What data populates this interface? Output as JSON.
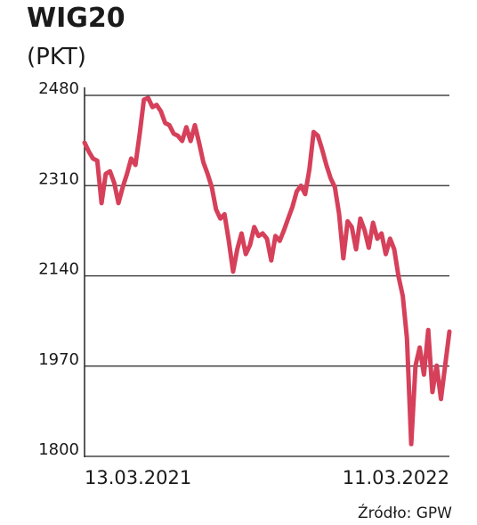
{
  "chart_data": {
    "type": "line",
    "title": "WIG20",
    "subtitle": "(PKT)",
    "source": "Źródło: GPW",
    "categories": [
      "13.03.2021",
      null,
      null,
      null,
      null,
      null,
      null,
      null,
      null,
      null,
      null,
      null,
      null,
      null,
      null,
      null,
      null,
      null,
      null,
      null,
      null,
      null,
      null,
      null,
      null,
      null,
      null,
      null,
      null,
      null,
      null,
      null,
      null,
      null,
      null,
      null,
      null,
      null,
      null,
      null,
      null,
      null,
      null,
      null,
      null,
      null,
      null,
      null,
      null,
      null,
      null,
      null,
      null,
      null,
      null,
      null,
      null,
      null,
      null,
      null,
      null,
      null,
      null,
      null,
      null,
      null,
      null,
      null,
      null,
      null,
      null,
      null,
      null,
      null,
      null,
      null,
      null,
      null,
      null,
      null,
      null,
      null,
      null,
      null,
      null,
      null,
      "11.03.2022"
    ],
    "series": [
      {
        "color": "#d6405a",
        "values": [
          2391,
          2374,
          2361,
          2357,
          2277,
          2332,
          2337,
          2315,
          2277,
          2307,
          2332,
          2361,
          2349,
          2408,
          2472,
          2475,
          2458,
          2462,
          2450,
          2428,
          2424,
          2408,
          2404,
          2394,
          2420,
          2394,
          2424,
          2391,
          2354,
          2332,
          2307,
          2265,
          2248,
          2256,
          2206,
          2148,
          2190,
          2220,
          2181,
          2198,
          2232,
          2215,
          2220,
          2210,
          2169,
          2215,
          2206,
          2226,
          2248,
          2270,
          2299,
          2310,
          2294,
          2341,
          2411,
          2404,
          2378,
          2349,
          2324,
          2307,
          2257,
          2173,
          2243,
          2232,
          2190,
          2248,
          2226,
          2193,
          2240,
          2210,
          2220,
          2181,
          2210,
          2190,
          2139,
          2102,
          2022,
          1823,
          1971,
          2005,
          1954,
          2038,
          1921,
          1971,
          1908,
          1971,
          2035
        ]
      }
    ],
    "ylim": [
      1800,
      2480
    ],
    "yticks": [
      1800,
      1970,
      2140,
      2310,
      2480
    ],
    "grid": true
  }
}
